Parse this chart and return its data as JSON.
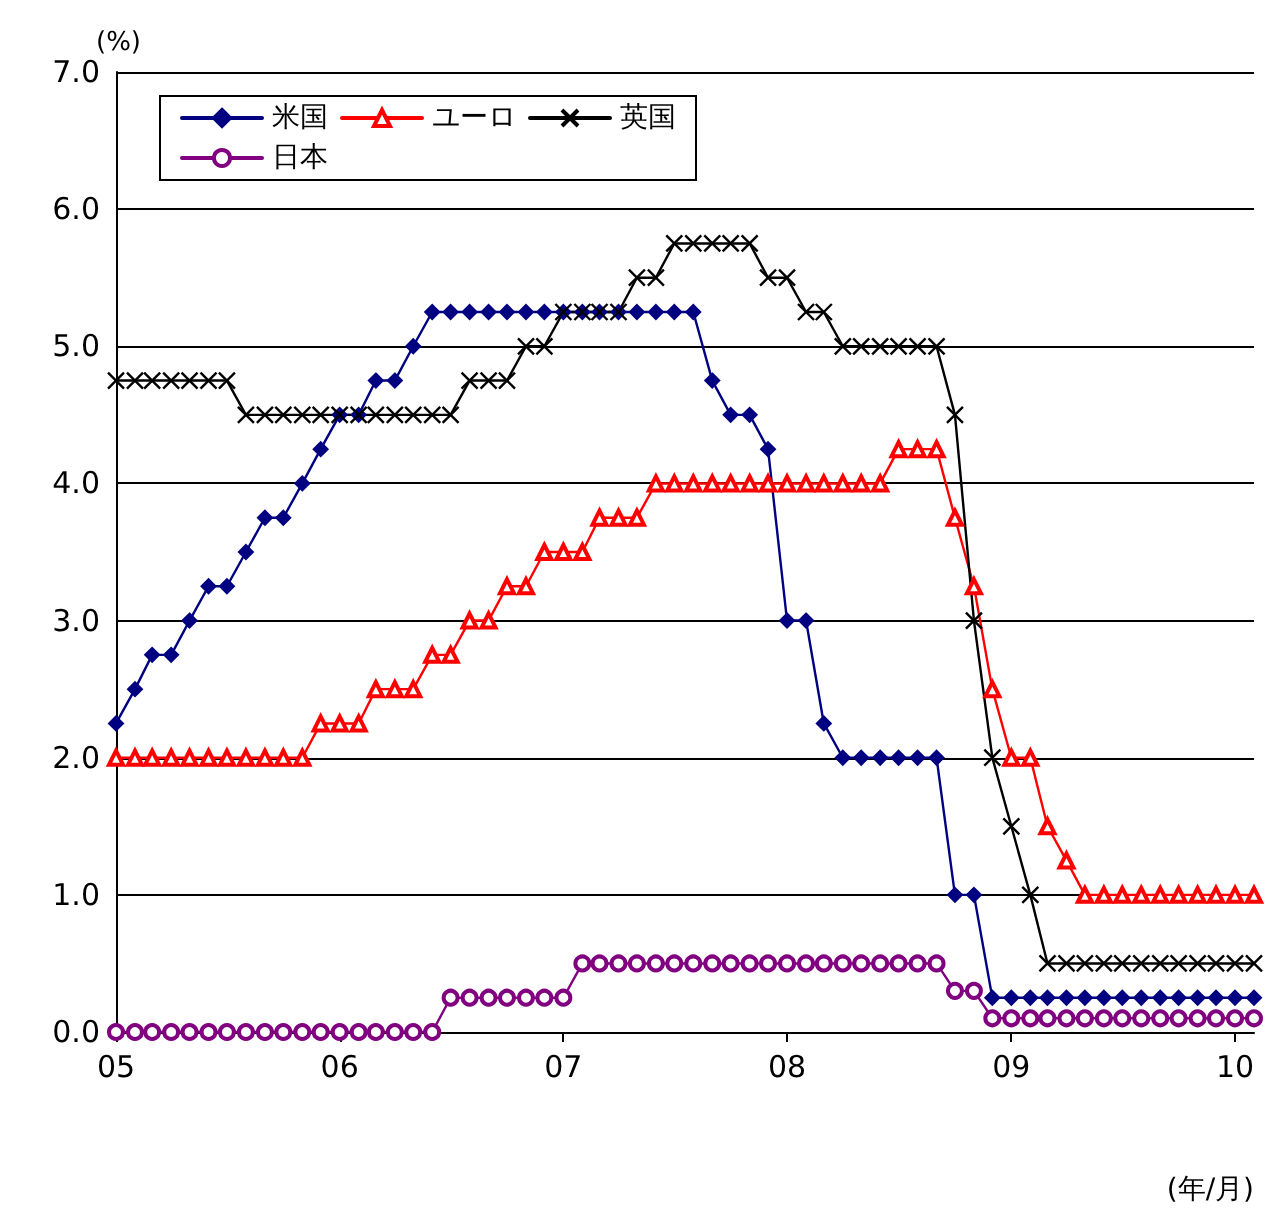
{
  "chart_data": {
    "type": "line",
    "ylabel": "(%)",
    "xlabel": "(年/月)",
    "x": [
      "2005-01",
      "2005-02",
      "2005-03",
      "2005-04",
      "2005-05",
      "2005-06",
      "2005-07",
      "2005-08",
      "2005-09",
      "2005-10",
      "2005-11",
      "2005-12",
      "2006-01",
      "2006-02",
      "2006-03",
      "2006-04",
      "2006-05",
      "2006-06",
      "2006-07",
      "2006-08",
      "2006-09",
      "2006-10",
      "2006-11",
      "2006-12",
      "2007-01",
      "2007-02",
      "2007-03",
      "2007-04",
      "2007-05",
      "2007-06",
      "2007-07",
      "2007-08",
      "2007-09",
      "2007-10",
      "2007-11",
      "2007-12",
      "2008-01",
      "2008-02",
      "2008-03",
      "2008-04",
      "2008-05",
      "2008-06",
      "2008-07",
      "2008-08",
      "2008-09",
      "2008-10",
      "2008-11",
      "2008-12",
      "2009-01",
      "2009-02",
      "2009-03",
      "2009-04",
      "2009-05",
      "2009-06",
      "2009-07",
      "2009-08",
      "2009-09",
      "2009-10",
      "2009-11",
      "2009-12",
      "2010-01",
      "2010-02"
    ],
    "xlim": [
      "2005-01",
      "2010-02"
    ],
    "xticks": [
      {
        "value": "2005-01",
        "label": "05"
      },
      {
        "value": "2006-01",
        "label": "06"
      },
      {
        "value": "2007-01",
        "label": "07"
      },
      {
        "value": "2008-01",
        "label": "08"
      },
      {
        "value": "2009-01",
        "label": "09"
      },
      {
        "value": "2010-01",
        "label": "10"
      }
    ],
    "ylim": [
      0,
      7
    ],
    "yticks": [
      {
        "value": 0,
        "label": "0.0"
      },
      {
        "value": 1,
        "label": "1.0"
      },
      {
        "value": 2,
        "label": "2.0"
      },
      {
        "value": 3,
        "label": "3.0"
      },
      {
        "value": 4,
        "label": "4.0"
      },
      {
        "value": 5,
        "label": "5.0"
      },
      {
        "value": 6,
        "label": "6.0"
      },
      {
        "value": 7,
        "label": "7.0"
      }
    ],
    "grid": "y",
    "legend": "top left",
    "series": [
      {
        "name": "米国",
        "color": "#000080",
        "marker": "diamond",
        "values": [
          2.25,
          2.5,
          2.75,
          2.75,
          3.0,
          3.25,
          3.25,
          3.5,
          3.75,
          3.75,
          4.0,
          4.25,
          4.5,
          4.5,
          4.75,
          4.75,
          5.0,
          5.25,
          5.25,
          5.25,
          5.25,
          5.25,
          5.25,
          5.25,
          5.25,
          5.25,
          5.25,
          5.25,
          5.25,
          5.25,
          5.25,
          5.25,
          4.75,
          4.5,
          4.5,
          4.25,
          3.0,
          3.0,
          2.25,
          2.0,
          2.0,
          2.0,
          2.0,
          2.0,
          2.0,
          1.0,
          1.0,
          0.25,
          0.25,
          0.25,
          0.25,
          0.25,
          0.25,
          0.25,
          0.25,
          0.25,
          0.25,
          0.25,
          0.25,
          0.25,
          0.25,
          0.25
        ]
      },
      {
        "name": "ユーロ",
        "color": "#ff0000",
        "marker": "triangle",
        "values": [
          2.0,
          2.0,
          2.0,
          2.0,
          2.0,
          2.0,
          2.0,
          2.0,
          2.0,
          2.0,
          2.0,
          2.25,
          2.25,
          2.25,
          2.5,
          2.5,
          2.5,
          2.75,
          2.75,
          3.0,
          3.0,
          3.25,
          3.25,
          3.5,
          3.5,
          3.5,
          3.75,
          3.75,
          3.75,
          4.0,
          4.0,
          4.0,
          4.0,
          4.0,
          4.0,
          4.0,
          4.0,
          4.0,
          4.0,
          4.0,
          4.0,
          4.0,
          4.25,
          4.25,
          4.25,
          3.75,
          3.25,
          2.5,
          2.0,
          2.0,
          1.5,
          1.25,
          1.0,
          1.0,
          1.0,
          1.0,
          1.0,
          1.0,
          1.0,
          1.0,
          1.0,
          1.0
        ]
      },
      {
        "name": "英国",
        "color": "#000000",
        "marker": "cross",
        "values": [
          4.75,
          4.75,
          4.75,
          4.75,
          4.75,
          4.75,
          4.75,
          4.5,
          4.5,
          4.5,
          4.5,
          4.5,
          4.5,
          4.5,
          4.5,
          4.5,
          4.5,
          4.5,
          4.5,
          4.75,
          4.75,
          4.75,
          5.0,
          5.0,
          5.25,
          5.25,
          5.25,
          5.25,
          5.5,
          5.5,
          5.75,
          5.75,
          5.75,
          5.75,
          5.75,
          5.5,
          5.5,
          5.25,
          5.25,
          5.0,
          5.0,
          5.0,
          5.0,
          5.0,
          5.0,
          4.5,
          3.0,
          2.0,
          1.5,
          1.0,
          0.5,
          0.5,
          0.5,
          0.5,
          0.5,
          0.5,
          0.5,
          0.5,
          0.5,
          0.5,
          0.5,
          0.5
        ]
      },
      {
        "name": "日本",
        "color": "#800080",
        "marker": "circle",
        "values": [
          0,
          0,
          0,
          0,
          0,
          0,
          0,
          0,
          0,
          0,
          0,
          0,
          0,
          0,
          0,
          0,
          0,
          0,
          0.25,
          0.25,
          0.25,
          0.25,
          0.25,
          0.25,
          0.25,
          0.5,
          0.5,
          0.5,
          0.5,
          0.5,
          0.5,
          0.5,
          0.5,
          0.5,
          0.5,
          0.5,
          0.5,
          0.5,
          0.5,
          0.5,
          0.5,
          0.5,
          0.5,
          0.5,
          0.5,
          0.3,
          0.3,
          0.1,
          0.1,
          0.1,
          0.1,
          0.1,
          0.1,
          0.1,
          0.1,
          0.1,
          0.1,
          0.1,
          0.1,
          0.1,
          0.1,
          0.1
        ]
      }
    ]
  }
}
